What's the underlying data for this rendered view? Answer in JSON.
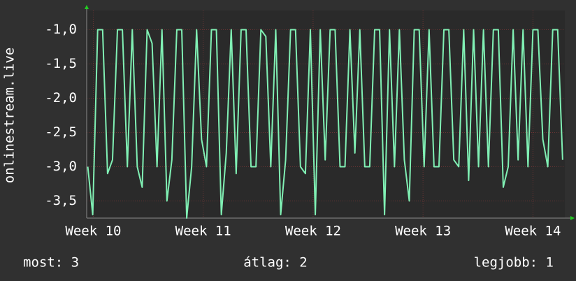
{
  "chart_data": {
    "type": "line",
    "ylabel": "onlinestream.live",
    "annotations": [
      "most: 3",
      "átlag: 2",
      "legjobb: 1"
    ],
    "color": "#80f0b4",
    "grid": true,
    "xlim": [
      9.94,
      14.29
    ],
    "xticks": [
      {
        "value": 10,
        "label": "Week 10"
      },
      {
        "value": 11,
        "label": "Week 11"
      },
      {
        "value": 12,
        "label": "Week 12"
      },
      {
        "value": 13,
        "label": "Week 13"
      },
      {
        "value": 14,
        "label": "Week 14"
      }
    ],
    "ylim": [
      -3.75,
      -0.72
    ],
    "yticks": [
      {
        "value": -1.0,
        "label": "-1,0"
      },
      {
        "value": -1.5,
        "label": "-1,5"
      },
      {
        "value": -2.0,
        "label": "-2,0"
      },
      {
        "value": -2.5,
        "label": "-2,5"
      },
      {
        "value": -3.0,
        "label": "-3,0"
      },
      {
        "value": -3.5,
        "label": "-3,5"
      }
    ],
    "x": [
      9.95,
      9.995,
      10.04,
      10.085,
      10.13,
      10.175,
      10.22,
      10.265,
      10.31,
      10.355,
      10.4,
      10.445,
      10.49,
      10.535,
      10.58,
      10.625,
      10.67,
      10.715,
      10.76,
      10.805,
      10.85,
      10.895,
      10.94,
      10.985,
      11.03,
      11.075,
      11.12,
      11.165,
      11.21,
      11.255,
      11.3,
      11.345,
      11.39,
      11.435,
      11.48,
      11.525,
      11.57,
      11.615,
      11.66,
      11.705,
      11.75,
      11.795,
      11.84,
      11.885,
      11.93,
      11.975,
      12.02,
      12.065,
      12.11,
      12.155,
      12.2,
      12.245,
      12.29,
      12.335,
      12.38,
      12.425,
      12.47,
      12.515,
      12.56,
      12.605,
      12.65,
      12.695,
      12.74,
      12.785,
      12.83,
      12.875,
      12.92,
      12.965,
      13.01,
      13.055,
      13.1,
      13.145,
      13.19,
      13.235,
      13.28,
      13.325,
      13.37,
      13.415,
      13.46,
      13.505,
      13.55,
      13.595,
      13.64,
      13.685,
      13.73,
      13.775,
      13.82,
      13.865,
      13.91,
      13.955,
      14.0,
      14.045,
      14.09,
      14.135,
      14.18,
      14.225,
      14.27
    ],
    "values": [
      -3.0,
      -3.7,
      -1.0,
      -1.0,
      -3.1,
      -2.9,
      -1.0,
      -1.0,
      -3.0,
      -1.0,
      -3.0,
      -3.3,
      -1.0,
      -1.2,
      -3.0,
      -1.0,
      -3.5,
      -2.9,
      -1.0,
      -1.0,
      -3.75,
      -3.0,
      -1.0,
      -2.6,
      -3.0,
      -1.0,
      -1.0,
      -3.7,
      -2.8,
      -1.0,
      -3.1,
      -1.0,
      -1.0,
      -3.0,
      -3.0,
      -1.0,
      -1.1,
      -3.0,
      -1.0,
      -3.7,
      -2.9,
      -1.0,
      -1.0,
      -3.0,
      -3.1,
      -1.0,
      -3.7,
      -1.0,
      -2.9,
      -1.0,
      -1.0,
      -3.0,
      -3.0,
      -1.0,
      -2.8,
      -1.0,
      -3.0,
      -3.0,
      -1.0,
      -1.0,
      -3.7,
      -1.0,
      -3.0,
      -1.0,
      -2.9,
      -3.5,
      -1.0,
      -1.0,
      -3.0,
      -1.0,
      -3.0,
      -3.0,
      -1.0,
      -1.0,
      -2.9,
      -3.0,
      -1.0,
      -3.2,
      -1.0,
      -3.0,
      -1.0,
      -3.0,
      -1.0,
      -1.0,
      -3.3,
      -3.0,
      -1.0,
      -2.9,
      -1.0,
      -3.0,
      -1.0,
      -1.0,
      -2.6,
      -3.0,
      -1.0,
      -1.0,
      -2.9
    ]
  }
}
